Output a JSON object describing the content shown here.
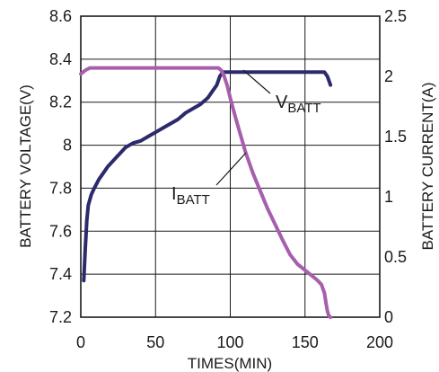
{
  "chart_data": {
    "type": "line",
    "xlabel": "TIMES(MIN)",
    "ylabel": "BATTERY VOLTAGE(V)",
    "y2label": "BATTERY CURRENT(A)",
    "xlim": [
      0,
      200
    ],
    "ylim": [
      7.2,
      8.6
    ],
    "y2lim": [
      0,
      2.5
    ],
    "x_ticks": [
      0,
      50,
      100,
      150,
      200
    ],
    "y_ticks": [
      7.2,
      7.4,
      7.6,
      7.8,
      8,
      8.2,
      8.4,
      8.6
    ],
    "y_tick_labels": [
      "7.2",
      "7.4",
      "7.6",
      "7.8",
      "8",
      "8.2",
      "8.4",
      "8.6"
    ],
    "y2_ticks": [
      0,
      0.5,
      1,
      1.5,
      2,
      2.5
    ],
    "y2_tick_labels": [
      "0",
      "0.5",
      "1",
      "1.5",
      "2",
      "2.5"
    ],
    "grid": true,
    "series": [
      {
        "name": "VBATT",
        "label_main": "V",
        "label_sub": "BATT",
        "axis": "left",
        "color": "#2b2a6b",
        "x": [
          2,
          3,
          4,
          5,
          7,
          9,
          12,
          15,
          18,
          22,
          26,
          30,
          35,
          40,
          45,
          50,
          55,
          60,
          65,
          70,
          75,
          80,
          85,
          88,
          91,
          93,
          95,
          100,
          110,
          120,
          130,
          140,
          150,
          160,
          163,
          165,
          167
        ],
        "y": [
          7.37,
          7.52,
          7.65,
          7.72,
          7.77,
          7.8,
          7.84,
          7.87,
          7.9,
          7.93,
          7.96,
          7.99,
          8.01,
          8.02,
          8.04,
          8.06,
          8.08,
          8.1,
          8.12,
          8.15,
          8.17,
          8.19,
          8.22,
          8.25,
          8.28,
          8.32,
          8.34,
          8.34,
          8.34,
          8.34,
          8.34,
          8.34,
          8.34,
          8.34,
          8.34,
          8.32,
          8.28
        ]
      },
      {
        "name": "IBATT",
        "label_main": "I",
        "label_sub": "BATT",
        "axis": "right",
        "color": "#a65fad",
        "x": [
          0,
          3,
          6,
          10,
          20,
          40,
          60,
          80,
          90,
          92,
          94,
          96,
          98,
          100,
          103,
          106,
          110,
          115,
          120,
          125,
          130,
          135,
          140,
          145,
          150,
          155,
          158,
          161,
          163,
          164,
          165,
          166,
          167
        ],
        "y": [
          2.02,
          2.05,
          2.07,
          2.07,
          2.07,
          2.07,
          2.07,
          2.07,
          2.07,
          2.07,
          2.05,
          2.0,
          1.92,
          1.82,
          1.68,
          1.55,
          1.38,
          1.2,
          1.05,
          0.9,
          0.77,
          0.64,
          0.52,
          0.44,
          0.39,
          0.34,
          0.31,
          0.27,
          0.2,
          0.12,
          0.05,
          0.01,
          0.0
        ]
      }
    ]
  }
}
